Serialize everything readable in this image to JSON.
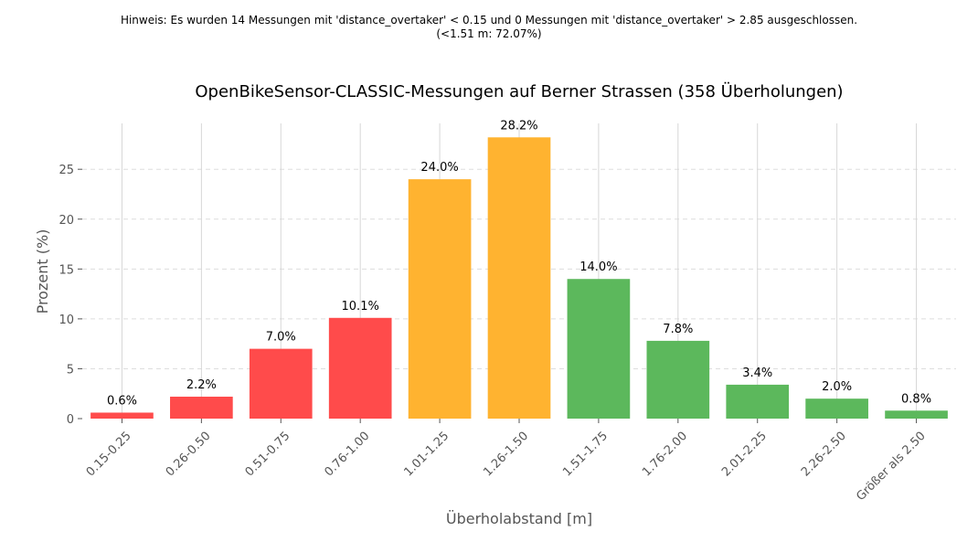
{
  "note": {
    "line1": "Hinweis: Es wurden 14 Messungen mit 'distance_overtaker' < 0.15 und 0 Messungen mit 'distance_overtaker' > 2.85 ausgeschlossen.",
    "line2": "(<1.51 m: 72.07%)"
  },
  "chart_data": {
    "type": "bar",
    "title": "OpenBikeSensor-CLASSIC-Messungen auf Berner Strassen (358 Überholungen)",
    "xlabel": "Überholabstand [m]",
    "ylabel": "Prozent (%)",
    "ylim": [
      0,
      29.6
    ],
    "yticks": [
      0,
      5,
      10,
      15,
      20,
      25
    ],
    "grid": "y-dashed, x-solid",
    "categories": [
      "0.15-0.25",
      "0.26-0.50",
      "0.51-0.75",
      "0.76-1.00",
      "1.01-1.25",
      "1.26-1.50",
      "1.51-1.75",
      "1.76-2.00",
      "2.01-2.25",
      "2.26-2.50",
      "Größer als 2.50"
    ],
    "values": [
      0.6,
      2.2,
      7.0,
      10.1,
      24.0,
      28.2,
      14.0,
      7.8,
      3.4,
      2.0,
      0.8
    ],
    "value_labels": [
      "0.6%",
      "2.2%",
      "7.0%",
      "10.1%",
      "24.0%",
      "28.2%",
      "14.0%",
      "7.8%",
      "3.4%",
      "2.0%",
      "0.8%"
    ],
    "colors": [
      "#ff4b4b",
      "#ff4b4b",
      "#ff4b4b",
      "#ff4b4b",
      "#ffb330",
      "#ffb330",
      "#5cb85c",
      "#5cb85c",
      "#5cb85c",
      "#5cb85c",
      "#5cb85c"
    ]
  }
}
